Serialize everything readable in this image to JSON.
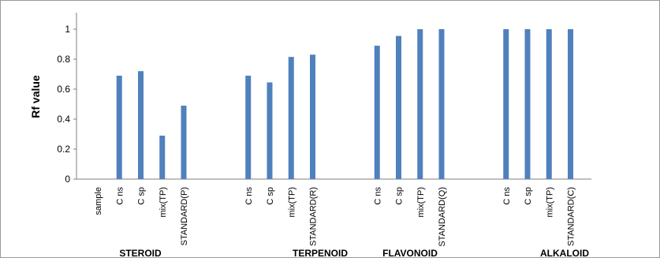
{
  "chart_data": {
    "type": "bar",
    "ylabel": "Rf value",
    "ylim": [
      0,
      1.1
    ],
    "yticks": [
      0,
      0.2,
      0.4,
      0.6,
      0.8,
      1
    ],
    "ytick_labels": [
      "0",
      "0.2",
      "0.4",
      "0.6",
      "0.8",
      "1"
    ],
    "grid": false,
    "bar_color": "#4f81bd",
    "categories": [
      "sample",
      "C ns",
      "C sp",
      "mix(TP)",
      "STANDARD(P)",
      "C ns",
      "C sp",
      "mix(TP)",
      "STANDARD(R)",
      "C ns",
      "C sp",
      "mix(TP)",
      "STANDARD(Q)",
      "C ns",
      "C sp",
      "mix(TP)",
      "STANDARD(C)"
    ],
    "values": [
      0,
      0.69,
      0.72,
      0.29,
      0.49,
      0.69,
      0.645,
      0.815,
      0.83,
      0.89,
      0.955,
      1.0,
      1.0,
      1.0,
      1.0,
      1.0,
      1.0
    ],
    "groups": [
      {
        "label": "STEROID",
        "categories": [
          0,
          1,
          2,
          3,
          4
        ]
      },
      {
        "label": "TERPENOID",
        "categories": [
          5,
          6,
          7,
          8
        ]
      },
      {
        "label": "FLAVONOID",
        "categories": [
          9,
          10,
          11,
          12
        ]
      },
      {
        "label": "ALKALOID",
        "categories": [
          13,
          14,
          15,
          16
        ]
      }
    ]
  }
}
